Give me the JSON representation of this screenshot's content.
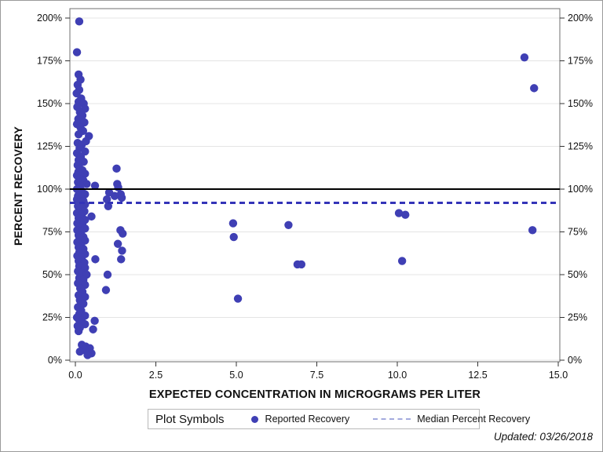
{
  "colors": {
    "marker": "#3f3fb4",
    "median_line": "#3434b8",
    "solid_line": "#000000",
    "grid": "#e4e4e4",
    "frame": "#6f6f6f",
    "tick": "#333333",
    "text": "#111111",
    "legend_dash": "#a3aade"
  },
  "legend": {
    "title": "Plot Symbols",
    "items": [
      {
        "label": "Reported Recovery",
        "marker": "dot-icon"
      },
      {
        "label": "Median Percent Recovery",
        "marker": "dashed-line-icon"
      }
    ]
  },
  "footer": {
    "updated": "Updated: 03/26/2018"
  },
  "chart_data": {
    "type": "scatter",
    "title": "",
    "xlabel": "EXPECTED CONCENTRATION IN MICROGRAMS PER LITER",
    "ylabel": "PERCENT RECOVERY",
    "xlim": [
      -0.17,
      15.05
    ],
    "ylim": [
      -1,
      205
    ],
    "grid": "horizontal",
    "legend_position": "bottom",
    "x_ticks": {
      "values": [
        0,
        2.5,
        5,
        7.5,
        10,
        12.5,
        15
      ],
      "labels": [
        "0.0",
        "2.5",
        "5.0",
        "7.5",
        "10.0",
        "12.5",
        "15.0"
      ]
    },
    "y_ticks": {
      "values": [
        0,
        25,
        50,
        75,
        100,
        125,
        150,
        175,
        200
      ],
      "labels": [
        "0%",
        "25%",
        "50%",
        "75%",
        "100%",
        "125%",
        "150%",
        "175%",
        "200%"
      ]
    },
    "reference_lines": [
      {
        "name": "100-percent-reference",
        "y": 100,
        "style": "solid",
        "color": "#000000",
        "width": 2
      },
      {
        "name": "median-percent-recovery",
        "y": 92,
        "style": "dashed",
        "color": "#3434b8",
        "width": 3
      }
    ],
    "series": [
      {
        "name": "Reported Recovery",
        "points": [
          [
            0.12,
            198
          ],
          [
            0.05,
            180
          ],
          [
            0.1,
            167
          ],
          [
            0.16,
            164
          ],
          [
            0.07,
            161
          ],
          [
            0.12,
            158
          ],
          [
            0.04,
            156
          ],
          [
            0.18,
            153
          ],
          [
            0.1,
            151
          ],
          [
            0.26,
            150
          ],
          [
            0.06,
            148
          ],
          [
            0.3,
            147
          ],
          [
            0.14,
            145
          ],
          [
            0.22,
            143
          ],
          [
            0.09,
            141
          ],
          [
            0.28,
            139
          ],
          [
            0.05,
            138
          ],
          [
            0.16,
            136
          ],
          [
            0.24,
            134
          ],
          [
            0.1,
            132
          ],
          [
            0.42,
            131
          ],
          [
            0.33,
            128
          ],
          [
            0.07,
            127
          ],
          [
            0.2,
            126
          ],
          [
            0.13,
            124
          ],
          [
            0.3,
            122
          ],
          [
            0.05,
            121
          ],
          [
            0.17,
            119
          ],
          [
            0.1,
            117
          ],
          [
            0.26,
            116
          ],
          [
            0.07,
            114
          ],
          [
            1.28,
            112
          ],
          [
            0.14,
            112
          ],
          [
            0.22,
            111
          ],
          [
            0.09,
            110
          ],
          [
            0.3,
            109
          ],
          [
            0.05,
            108
          ],
          [
            0.18,
            107
          ],
          [
            0.12,
            106
          ],
          [
            0.25,
            105
          ],
          [
            0.08,
            104
          ],
          [
            0.35,
            103
          ],
          [
            1.3,
            103
          ],
          [
            0.61,
            102
          ],
          [
            0.15,
            102
          ],
          [
            1.33,
            101
          ],
          [
            0.05,
            100
          ],
          [
            0.2,
            99
          ],
          [
            1.05,
            98
          ],
          [
            0.12,
            98
          ],
          [
            0.3,
            97
          ],
          [
            1.41,
            97
          ],
          [
            0.08,
            96
          ],
          [
            1.22,
            96
          ],
          [
            1.44,
            95
          ],
          [
            0.17,
            95
          ],
          [
            0.05,
            94
          ],
          [
            0.98,
            94
          ],
          [
            0.25,
            93
          ],
          [
            0.12,
            92
          ],
          [
            0.3,
            91
          ],
          [
            1.02,
            90
          ],
          [
            0.08,
            90
          ],
          [
            0.18,
            89
          ],
          [
            0.12,
            88
          ],
          [
            0.28,
            87
          ],
          [
            0.05,
            86
          ],
          [
            10.05,
            86
          ],
          [
            0.2,
            85
          ],
          [
            10.25,
            85
          ],
          [
            0.5,
            84
          ],
          [
            0.1,
            83
          ],
          [
            0.3,
            82
          ],
          [
            0.15,
            81
          ],
          [
            0.06,
            80
          ],
          [
            4.9,
            80
          ],
          [
            6.62,
            79
          ],
          [
            0.22,
            79
          ],
          [
            0.12,
            78
          ],
          [
            0.3,
            77
          ],
          [
            0.06,
            76
          ],
          [
            1.4,
            76
          ],
          [
            14.2,
            76
          ],
          [
            0.18,
            75
          ],
          [
            1.47,
            74
          ],
          [
            0.1,
            73
          ],
          [
            4.92,
            72
          ],
          [
            0.25,
            72
          ],
          [
            0.13,
            71
          ],
          [
            0.3,
            70
          ],
          [
            0.06,
            69
          ],
          [
            1.32,
            68
          ],
          [
            0.18,
            67
          ],
          [
            0.1,
            66
          ],
          [
            0.25,
            65
          ],
          [
            1.45,
            64
          ],
          [
            0.12,
            63
          ],
          [
            0.3,
            62
          ],
          [
            0.06,
            61
          ],
          [
            0.2,
            60
          ],
          [
            1.42,
            59
          ],
          [
            0.62,
            59
          ],
          [
            0.1,
            58
          ],
          [
            10.15,
            58
          ],
          [
            0.28,
            57
          ],
          [
            6.9,
            56
          ],
          [
            7.02,
            56
          ],
          [
            0.12,
            55
          ],
          [
            0.3,
            54
          ],
          [
            0.08,
            52
          ],
          [
            0.2,
            51
          ],
          [
            1.0,
            50
          ],
          [
            0.35,
            50
          ],
          [
            0.12,
            48
          ],
          [
            0.25,
            47
          ],
          [
            0.08,
            45
          ],
          [
            0.3,
            44
          ],
          [
            0.15,
            42
          ],
          [
            0.95,
            41
          ],
          [
            0.22,
            40
          ],
          [
            0.1,
            38
          ],
          [
            0.3,
            37
          ],
          [
            5.05,
            36
          ],
          [
            0.14,
            35
          ],
          [
            0.25,
            33
          ],
          [
            0.08,
            31
          ],
          [
            0.18,
            29
          ],
          [
            0.12,
            27
          ],
          [
            0.3,
            26
          ],
          [
            0.05,
            25
          ],
          [
            0.1,
            24
          ],
          [
            0.2,
            23
          ],
          [
            0.6,
            23
          ],
          [
            0.3,
            21
          ],
          [
            0.07,
            20
          ],
          [
            0.14,
            19
          ],
          [
            0.55,
            18
          ],
          [
            0.1,
            17
          ],
          [
            0.2,
            9
          ],
          [
            0.32,
            8
          ],
          [
            0.45,
            7
          ],
          [
            0.28,
            6
          ],
          [
            0.14,
            5
          ],
          [
            0.5,
            4
          ],
          [
            0.38,
            3
          ],
          [
            13.95,
            177
          ],
          [
            14.25,
            159
          ]
        ]
      }
    ]
  }
}
